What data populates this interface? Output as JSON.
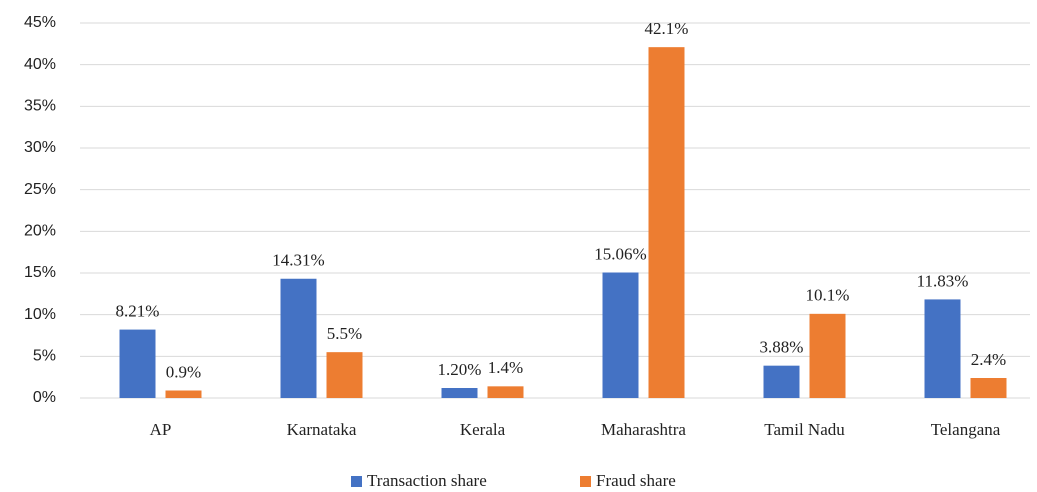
{
  "chart_data": {
    "type": "bar",
    "categories": [
      "AP",
      "Karnataka",
      "Kerala",
      "Maharashtra",
      "Tamil Nadu",
      "Telangana"
    ],
    "series": [
      {
        "name": "Transaction share",
        "color": "#4472c4",
        "values": [
          8.21,
          14.31,
          1.2,
          15.06,
          3.88,
          11.83
        ],
        "value_labels": [
          "8.21%",
          "14.31%",
          "1.20%",
          "15.06%",
          "3.88%",
          "11.83%"
        ]
      },
      {
        "name": "Fraud share",
        "color": "#ed7d31",
        "values": [
          0.9,
          5.5,
          1.4,
          42.1,
          10.1,
          2.4
        ],
        "value_labels": [
          "0.9%",
          "5.5%",
          "1.4%",
          "42.1%",
          "10.1%",
          "2.4%"
        ]
      }
    ],
    "ylim": [
      0,
      45
    ],
    "yticks": [
      {
        "value": 0,
        "label": "0%"
      },
      {
        "value": 5,
        "label": "5%"
      },
      {
        "value": 10,
        "label": "10%"
      },
      {
        "value": 15,
        "label": "15%"
      },
      {
        "value": 20,
        "label": "20%"
      },
      {
        "value": 25,
        "label": "25%"
      },
      {
        "value": 30,
        "label": "30%"
      },
      {
        "value": 35,
        "label": "35%"
      },
      {
        "value": 40,
        "label": "40%"
      },
      {
        "value": 45,
        "label": "45%"
      }
    ],
    "grid": true,
    "legend": "bottom"
  }
}
